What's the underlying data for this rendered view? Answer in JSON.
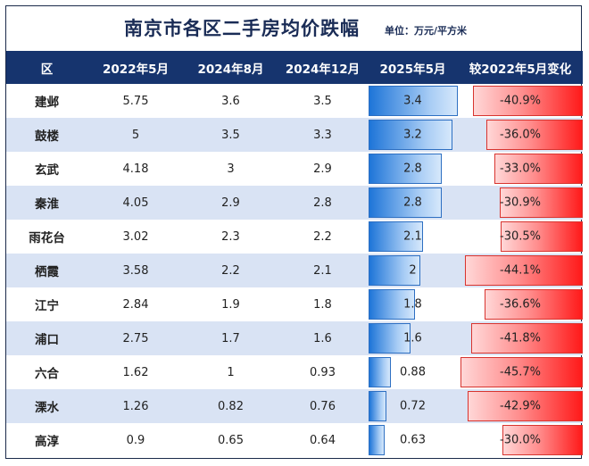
{
  "title": "南京市各区二手房均价跌幅",
  "unit": "单位：万元/平方米",
  "headers": [
    "区",
    "2022年5月",
    "2024年8月",
    "2024年12月",
    "2025年5月",
    "较2022年5月变化"
  ],
  "rows": [
    {
      "district": "建邺",
      "may2022": "5.75",
      "aug2024": "3.6",
      "dec2024": "3.5",
      "may2025": "3.4",
      "change": "-40.9%"
    },
    {
      "district": "鼓楼",
      "may2022": "5",
      "aug2024": "3.5",
      "dec2024": "3.3",
      "may2025": "3.2",
      "change": "-36.0%"
    },
    {
      "district": "玄武",
      "may2022": "4.18",
      "aug2024": "3",
      "dec2024": "2.9",
      "may2025": "2.8",
      "change": "-33.0%"
    },
    {
      "district": "秦淮",
      "may2022": "4.05",
      "aug2024": "2.9",
      "dec2024": "2.8",
      "may2025": "2.8",
      "change": "-30.9%"
    },
    {
      "district": "雨花台",
      "may2022": "3.02",
      "aug2024": "2.3",
      "dec2024": "2.2",
      "may2025": "2.1",
      "change": "-30.5%"
    },
    {
      "district": "栖霞",
      "may2022": "3.58",
      "aug2024": "2.2",
      "dec2024": "2.1",
      "may2025": "2",
      "change": "-44.1%"
    },
    {
      "district": "江宁",
      "may2022": "2.84",
      "aug2024": "1.9",
      "dec2024": "1.8",
      "may2025": "1.8",
      "change": "-36.6%"
    },
    {
      "district": "浦口",
      "may2022": "2.75",
      "aug2024": "1.7",
      "dec2024": "1.6",
      "may2025": "1.6",
      "change": "-41.8%"
    },
    {
      "district": "六合",
      "may2022": "1.62",
      "aug2024": "1",
      "dec2024": "0.93",
      "may2025": "0.88",
      "change": "-45.7%"
    },
    {
      "district": "溧水",
      "may2022": "1.26",
      "aug2024": "0.82",
      "dec2024": "0.76",
      "may2025": "0.72",
      "change": "-42.9%"
    },
    {
      "district": "高淳",
      "may2022": "0.9",
      "aug2024": "0.65",
      "dec2024": "0.64",
      "may2025": "0.63",
      "change": "-30.0%"
    }
  ],
  "colors": {
    "header_bg": "#16346e",
    "alt_row": "#d9e3f4",
    "positive_bar": "#1e75d8",
    "negative_bar": "#ff1a1a"
  }
}
